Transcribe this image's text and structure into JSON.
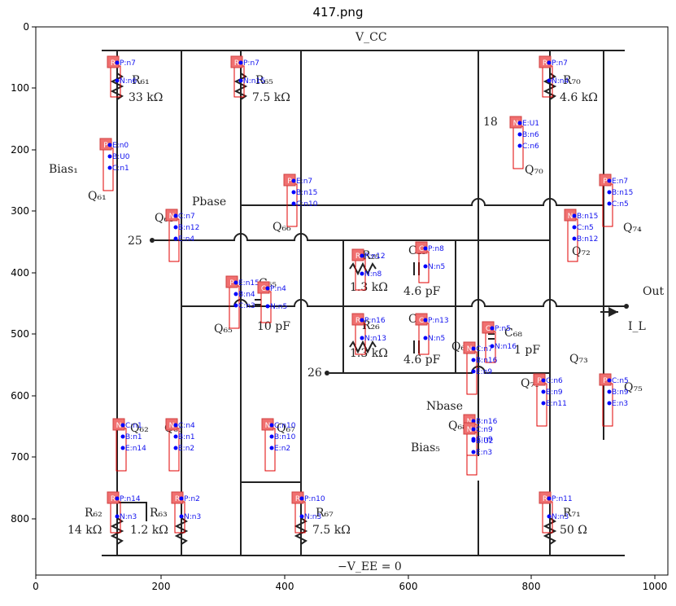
{
  "title": "417.png",
  "axes": {
    "x_ticks": [
      "0",
      "200",
      "400",
      "600",
      "800",
      "1000"
    ],
    "y_ticks": [
      "0",
      "100",
      "200",
      "300",
      "400",
      "500",
      "600",
      "700",
      "800"
    ]
  },
  "colors": {
    "wire": "#222222",
    "annotation": "#f07070",
    "outline": "#e00000",
    "pin": "#0000ff"
  },
  "circuit": {
    "rails": {
      "vcc": "V_CC",
      "vee": "−V_EE = 0"
    },
    "labels": {
      "bias1": "Bias₁",
      "q61": "Q₆₁",
      "pbase": "Pbase",
      "q64": "Q₆₄",
      "n25": "25",
      "q66": "Q₆₆",
      "q65": "Q₆₅",
      "c65": "C₆₅",
      "c65v": "10 pF",
      "r25": "R₂₅",
      "r25v": "1.3 kΩ",
      "c25": "C₂₅",
      "c25v": "4.6 pF",
      "r26": "R₂₆",
      "r26v": "1.3 kΩ",
      "c26": "C₂₆",
      "c26v": "4.6 pF",
      "n26": "26",
      "n18": "18",
      "q70": "Q₇₀",
      "q74": "Q₇₄",
      "q72": "Q₇₂",
      "out": "Out",
      "il": "I_L",
      "c68": "C₆₈",
      "c68v": "1 pF",
      "q69": "Q₆₉",
      "q73": "Q₇₃",
      "q75": "Q₇₅",
      "q71": "Q₇₁",
      "nbase": "Nbase",
      "q68": "Q₆₈",
      "bias5": "Bias₅",
      "q62": "Q₆₂",
      "q63": "Q₆₃",
      "q67": "Q₆₇",
      "r61": "R₆₁",
      "r61v": "33 kΩ",
      "r65": "R₆₅",
      "r65v": "7.5 kΩ",
      "r70": "R₇₀",
      "r70v": "4.6 kΩ",
      "r62": "R₆₂",
      "r62v": "14 kΩ",
      "r63": "R₆₃",
      "r63v": "1.2 kΩ",
      "r67": "R₆₇",
      "r67v": "7.5 kΩ",
      "r71": "R₇₁",
      "r71v": "50 Ω"
    },
    "annotations": [
      {
        "letter": "R",
        "pins": [
          "P:n7",
          "N:n6"
        ]
      },
      {
        "letter": "R",
        "pins": [
          "P:n7",
          "N:n15"
        ]
      },
      {
        "letter": "R",
        "pins": [
          "P:n7",
          "N:n4"
        ]
      },
      {
        "letter": "P",
        "pins": [
          "E:n0",
          "B:U0",
          "C:n1"
        ]
      },
      {
        "letter": "P",
        "pins": [
          "E:n7",
          "B:n15",
          "C:n10"
        ]
      },
      {
        "letter": "N",
        "pins": [
          "C:n7",
          "B:n12",
          "E:n4"
        ]
      },
      {
        "letter": "N",
        "pins": [
          "E:U1",
          "B:n6",
          "C:n6"
        ]
      },
      {
        "letter": "P",
        "pins": [
          "E:n7",
          "B:n15",
          "C:n5"
        ]
      },
      {
        "letter": "N",
        "pins": [
          "B:n15",
          "C:n5",
          "B:n12"
        ]
      },
      {
        "letter": "R",
        "pins": [
          "P:n12",
          "N:n8"
        ]
      },
      {
        "letter": "C",
        "pins": [
          "P:n8",
          "N:n5"
        ]
      },
      {
        "letter": "P",
        "pins": [
          "E:n15",
          "B:n4",
          "C:n3"
        ]
      },
      {
        "letter": "C",
        "pins": [
          "P:n4",
          "N:n5"
        ]
      },
      {
        "letter": "R",
        "pins": [
          "P:n16",
          "N:n13"
        ]
      },
      {
        "letter": "C",
        "pins": [
          "P:n13",
          "N:n5"
        ]
      },
      {
        "letter": "C",
        "pins": [
          "P:n5",
          "N:n16"
        ]
      },
      {
        "letter": "N",
        "pins": [
          "C:n7",
          "B:n16",
          "E:n9"
        ]
      },
      {
        "letter": "N",
        "pins": [
          "B:n16",
          "C:n9"
        ]
      },
      {
        "letter": "P",
        "pins": [
          "C:n6",
          "B:n9",
          "E:n11"
        ]
      },
      {
        "letter": "P",
        "pins": [
          "C:n5",
          "B:n9",
          "E:n3"
        ]
      },
      {
        "letter": "N",
        "pins": [
          "C:n9",
          "B:U2",
          "E:n3"
        ]
      },
      {
        "letter": "N",
        "pins": [
          "C:n1",
          "B:n1",
          "E:n14"
        ]
      },
      {
        "letter": "N",
        "pins": [
          "C:n4",
          "B:n1",
          "E:n2"
        ]
      },
      {
        "letter": "N",
        "pins": [
          "C:n10",
          "B:n10",
          "E:n2"
        ]
      },
      {
        "letter": "R",
        "pins": [
          "P:n14",
          "N:n3"
        ]
      },
      {
        "letter": "R",
        "pins": [
          "P:n2",
          "N:n3"
        ]
      },
      {
        "letter": "R",
        "pins": [
          "P:n10",
          "N:n3"
        ]
      },
      {
        "letter": "R",
        "pins": [
          "P:n11",
          "N:n3"
        ]
      }
    ]
  }
}
